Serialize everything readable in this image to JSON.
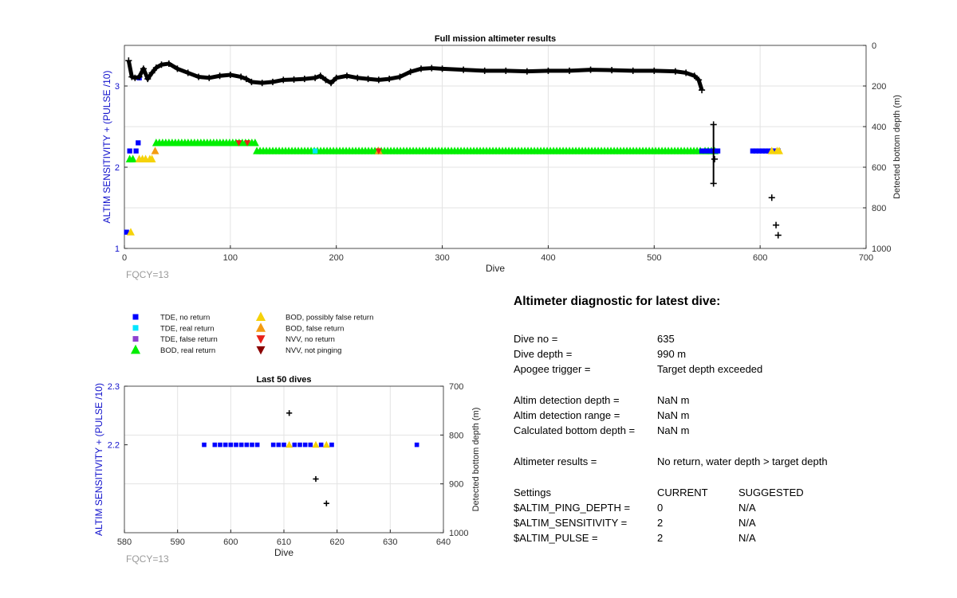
{
  "colors": {
    "tde_no_return": "#0000ff",
    "tde_real_return": "#00e5ff",
    "tde_false_return": "#8e3fd0",
    "bod_real_return": "#00ee00",
    "bod_possibly_false_return": "#f5d20a",
    "bod_false_return": "#f39c12",
    "nvv_no_return": "#e8201a",
    "nvv_not_pinging": "#8b0000",
    "left_axis_label": "#1111cc",
    "depth_markers": "#000000",
    "fqcy_text": "#9a9a9a"
  },
  "legend": [
    {
      "marker": "square",
      "color_key": "tde_no_return",
      "label": "TDE, no return"
    },
    {
      "marker": "square",
      "color_key": "tde_real_return",
      "label": "TDE, real return"
    },
    {
      "marker": "square",
      "color_key": "tde_false_return",
      "label": "TDE, false return"
    },
    {
      "marker": "triangle-up",
      "color_key": "bod_real_return",
      "label": "BOD, real return"
    },
    {
      "marker": "triangle-up",
      "color_key": "bod_possibly_false_return",
      "label": "BOD, possibly false return"
    },
    {
      "marker": "triangle-up",
      "color_key": "bod_false_return",
      "label": "BOD, false return"
    },
    {
      "marker": "triangle-down",
      "color_key": "nvv_no_return",
      "label": "NVV, no return"
    },
    {
      "marker": "triangle-down",
      "color_key": "nvv_not_pinging",
      "label": "NVV, not pinging"
    }
  ],
  "chart_data": [
    {
      "type": "scatter",
      "title": "Full mission altimeter results",
      "xlabel": "Dive",
      "ylabel": "ALTIM SENSITIVITY + (PULSE /10)",
      "ylabel_right": "Detected bottom depth (m)",
      "xlim": [
        0,
        700
      ],
      "ylim": [
        1,
        3.5
      ],
      "ylim_right": [
        0,
        1000
      ],
      "right_axis_reversed": true,
      "xticks": [
        0,
        100,
        200,
        300,
        400,
        500,
        600,
        700
      ],
      "yticks": [
        1,
        2,
        3
      ],
      "yticks_right": [
        0,
        200,
        400,
        600,
        800,
        1000
      ],
      "grid": true,
      "annotation": "FQCY=13",
      "series": [
        {
          "color_key": "bod_real_return",
          "segments": [
            [
              5,
              11,
              2.1
            ],
            [
              30,
              125,
              2.3
            ],
            [
              125,
              545,
              2.2
            ],
            [
              548,
              560,
              2.2
            ]
          ]
        },
        {
          "color_key": "tde_no_return",
          "segments": [
            [
              545,
              562,
              2.2
            ],
            [
              593,
              620,
              2.2
            ]
          ],
          "points": [
            [
              2,
              1.2
            ],
            [
              5,
              2.2
            ],
            [
              11,
              2.2
            ],
            [
              13,
              2.3
            ],
            [
              14,
              3.1
            ]
          ]
        },
        {
          "color_key": "bod_possibly_false_return",
          "points": [
            [
              6,
              1.2
            ],
            [
              14,
              2.1
            ],
            [
              17,
              2.1
            ],
            [
              20,
              2.1
            ],
            [
              24,
              2.1
            ],
            [
              26,
              2.1
            ],
            [
              611,
              2.2
            ],
            [
              616,
              2.2
            ],
            [
              618,
              2.2
            ]
          ]
        },
        {
          "color_key": "bod_false_return",
          "points": [
            [
              29,
              2.2
            ],
            [
              240,
              2.2
            ]
          ]
        },
        {
          "color_key": "nvv_no_return",
          "points": [
            [
              108,
              2.3
            ],
            [
              116,
              2.3
            ],
            [
              240,
              2.2
            ]
          ]
        },
        {
          "color_key": "tde_real_return",
          "points": [
            [
              180,
              2.2
            ]
          ]
        },
        {
          "name": "Detected bottom depth",
          "axis": "right",
          "color_key": "depth_markers",
          "points": [
            [
              4,
              75
            ],
            [
              7,
              155
            ],
            [
              10,
              160
            ],
            [
              14,
              155
            ],
            [
              18,
              115
            ],
            [
              22,
              165
            ],
            [
              26,
              135
            ],
            [
              30,
              110
            ],
            [
              35,
              95
            ],
            [
              42,
              90
            ],
            [
              50,
              115
            ],
            [
              60,
              135
            ],
            [
              70,
              155
            ],
            [
              80,
              160
            ],
            [
              90,
              150
            ],
            [
              100,
              145
            ],
            [
              110,
              155
            ],
            [
              115,
              165
            ],
            [
              120,
              180
            ],
            [
              130,
              185
            ],
            [
              140,
              180
            ],
            [
              150,
              170
            ],
            [
              160,
              168
            ],
            [
              170,
              165
            ],
            [
              180,
              160
            ],
            [
              185,
              150
            ],
            [
              190,
              170
            ],
            [
              195,
              185
            ],
            [
              200,
              160
            ],
            [
              210,
              150
            ],
            [
              220,
              160
            ],
            [
              230,
              165
            ],
            [
              240,
              170
            ],
            [
              250,
              165
            ],
            [
              260,
              155
            ],
            [
              270,
              130
            ],
            [
              280,
              115
            ],
            [
              290,
              112
            ],
            [
              300,
              115
            ],
            [
              320,
              120
            ],
            [
              340,
              125
            ],
            [
              360,
              125
            ],
            [
              380,
              128
            ],
            [
              400,
              125
            ],
            [
              420,
              125
            ],
            [
              440,
              120
            ],
            [
              460,
              122
            ],
            [
              480,
              125
            ],
            [
              500,
              125
            ],
            [
              520,
              128
            ],
            [
              530,
              135
            ],
            [
              538,
              150
            ],
            [
              542,
              170
            ],
            [
              545,
              220
            ],
            [
              556,
              390
            ],
            [
              556,
              680
            ],
            [
              557,
              560
            ],
            [
              611,
              750
            ],
            [
              615,
              885
            ],
            [
              617,
              935
            ]
          ]
        }
      ]
    },
    {
      "type": "scatter",
      "title": "Last 50 dives",
      "xlabel": "Dive",
      "ylabel": "ALTIM SENSITIVITY + (PULSE /10)",
      "ylabel_right": "Detected bottom depth (m)",
      "xlim": [
        580,
        640
      ],
      "ylim": [
        2.05,
        2.3
      ],
      "ylim_right": [
        700,
        1000
      ],
      "right_axis_reversed": true,
      "xticks": [
        580,
        590,
        600,
        610,
        620,
        630,
        640
      ],
      "yticks": [
        2.2,
        2.3
      ],
      "yticks_right": [
        700,
        800,
        900,
        1000
      ],
      "grid": true,
      "annotation": "FQCY=13",
      "series": [
        {
          "color_key": "tde_no_return",
          "points": [
            [
              595,
              2.2
            ],
            [
              597,
              2.2
            ],
            [
              598,
              2.2
            ],
            [
              599,
              2.2
            ],
            [
              600,
              2.2
            ],
            [
              601,
              2.2
            ],
            [
              602,
              2.2
            ],
            [
              603,
              2.2
            ],
            [
              604,
              2.2
            ],
            [
              605,
              2.2
            ],
            [
              608,
              2.2
            ],
            [
              609,
              2.2
            ],
            [
              610,
              2.2
            ],
            [
              612,
              2.2
            ],
            [
              613,
              2.2
            ],
            [
              614,
              2.2
            ],
            [
              615,
              2.2
            ],
            [
              617,
              2.2
            ],
            [
              619,
              2.2
            ],
            [
              635,
              2.2
            ]
          ]
        },
        {
          "color_key": "bod_possibly_false_return",
          "points": [
            [
              611,
              2.2
            ],
            [
              616,
              2.2
            ],
            [
              618,
              2.2
            ]
          ]
        },
        {
          "name": "Detected bottom depth",
          "axis": "right",
          "color_key": "depth_markers",
          "points": [
            [
              611,
              755
            ],
            [
              616,
              890
            ],
            [
              618,
              940
            ]
          ]
        }
      ]
    }
  ],
  "diagnostic": {
    "title": "Altimeter diagnostic for latest dive:",
    "dive_no_label": "Dive no =",
    "dive_no": "635",
    "dive_depth_label": "Dive depth =",
    "dive_depth": "990 m",
    "apogee_label": "Apogee trigger =",
    "apogee": "Target depth exceeded",
    "detection_depth_label": "Altim detection depth =",
    "detection_depth": "NaN m",
    "detection_range_label": "Altim detection range =",
    "detection_range": "NaN m",
    "calc_depth_label": "Calculated bottom depth =",
    "calc_depth": "NaN m",
    "results_label": "Altimeter results =",
    "results": "No return, water depth > target depth",
    "settings_label": "Settings",
    "current_label": "CURRENT",
    "suggested_label": "SUGGESTED",
    "settings": [
      {
        "name": "$ALTIM_PING_DEPTH =",
        "current": "0",
        "suggested": "N/A"
      },
      {
        "name": "$ALTIM_SENSITIVITY =",
        "current": "2",
        "suggested": "N/A"
      },
      {
        "name": "$ALTIM_PULSE =",
        "current": "2",
        "suggested": "N/A"
      }
    ]
  }
}
